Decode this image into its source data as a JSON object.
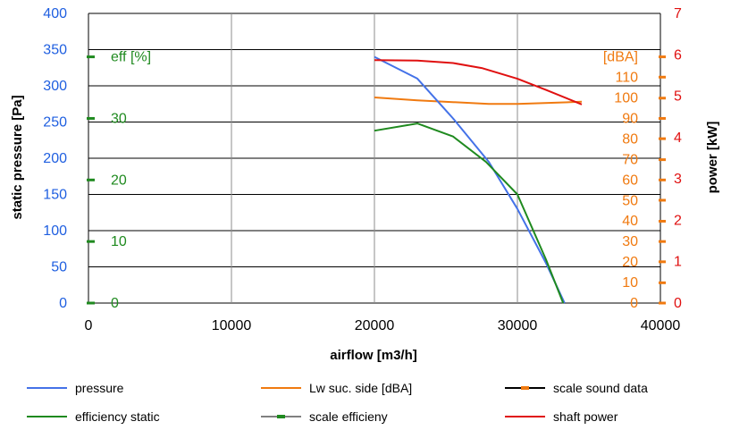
{
  "chart_data": {
    "type": "line",
    "xlabel": "airflow [m3/h]",
    "ylabel_left": "static pressure [Pa]",
    "ylabel_right": "power [kW]",
    "xlim": [
      0,
      40000
    ],
    "ylim_left": [
      0,
      400
    ],
    "ylim_right": [
      0,
      7
    ],
    "x_ticks": [
      "0",
      "10000",
      "20000",
      "30000",
      "40000"
    ],
    "y_left_ticks": [
      "0",
      "50",
      "100",
      "150",
      "200",
      "250",
      "300",
      "350",
      "400"
    ],
    "y_right_ticks": [
      "0",
      "1",
      "2",
      "3",
      "4",
      "5",
      "6",
      "7"
    ],
    "grid": true,
    "legend_position": "bottom",
    "colors": {
      "pressure": "#4472e8",
      "sound": "#f07a10",
      "efficiency": "#1f8a1f",
      "power": "#e01010",
      "scale_sound": "#f07a10",
      "scale_eff": "#1f8a1f"
    },
    "series": [
      {
        "name": "pressure",
        "axis": "left",
        "x": [
          20000,
          23000,
          25500,
          28000,
          30000,
          32000,
          33300
        ],
        "y": [
          340,
          310,
          255,
          195,
          130,
          55,
          0
        ]
      },
      {
        "name": "Lw suc. side [dBA]",
        "axis": "left",
        "x": [
          20000,
          23000,
          28000,
          30000,
          34500
        ],
        "y": [
          284,
          280,
          275,
          275,
          278
        ]
      },
      {
        "name": "efficiency static",
        "axis": "left",
        "x": [
          20000,
          23000,
          25500,
          27800,
          30000,
          32000,
          33200
        ],
        "y": [
          238,
          248,
          230,
          195,
          150,
          60,
          0
        ]
      },
      {
        "name": "shaft power",
        "axis": "right",
        "x": [
          20000,
          23000,
          25500,
          27500,
          30000,
          32000,
          34500
        ],
        "y": [
          5.87,
          5.86,
          5.8,
          5.68,
          5.42,
          5.15,
          4.8
        ]
      }
    ],
    "scale_efficiency": {
      "name": "scale efficieny",
      "label": "eff [%]",
      "ticks": [
        {
          "value": 0,
          "text": "0"
        },
        {
          "value": 10,
          "text": "10"
        },
        {
          "value": 20,
          "text": "20"
        },
        {
          "value": 30,
          "text": "30"
        }
      ],
      "marker_positions_pa": [
        0,
        85,
        170,
        255,
        340
      ]
    },
    "scale_sound": {
      "name": "scale sound data",
      "label": "[dBA]",
      "ticks": [
        {
          "value": 0,
          "text": "0"
        },
        {
          "value": 10,
          "text": "10"
        },
        {
          "value": 20,
          "text": "20"
        },
        {
          "value": 30,
          "text": "30"
        },
        {
          "value": 40,
          "text": "40"
        },
        {
          "value": 50,
          "text": "50"
        },
        {
          "value": 60,
          "text": "60"
        },
        {
          "value": 70,
          "text": "70"
        },
        {
          "value": 80,
          "text": "80"
        },
        {
          "value": 90,
          "text": "90"
        },
        {
          "value": 100,
          "text": "100"
        },
        {
          "value": 110,
          "text": "110"
        }
      ],
      "marker_positions_pa": [
        0,
        28,
        57,
        85,
        113,
        142,
        170,
        198,
        227,
        255,
        283,
        312,
        340
      ]
    },
    "legend": [
      {
        "name": "pressure",
        "style": "line",
        "color": "#4472e8"
      },
      {
        "name": "Lw suc. side [dBA]",
        "style": "line",
        "color": "#f07a10"
      },
      {
        "name": "scale sound data",
        "style": "line-marker",
        "color": "#000000",
        "marker": "#f07a10"
      },
      {
        "name": "efficiency static",
        "style": "line",
        "color": "#1f8a1f"
      },
      {
        "name": "scale efficieny",
        "style": "line-marker",
        "color": "#808080",
        "marker": "#1f8a1f"
      },
      {
        "name": "shaft power",
        "style": "line",
        "color": "#e01010"
      }
    ]
  }
}
